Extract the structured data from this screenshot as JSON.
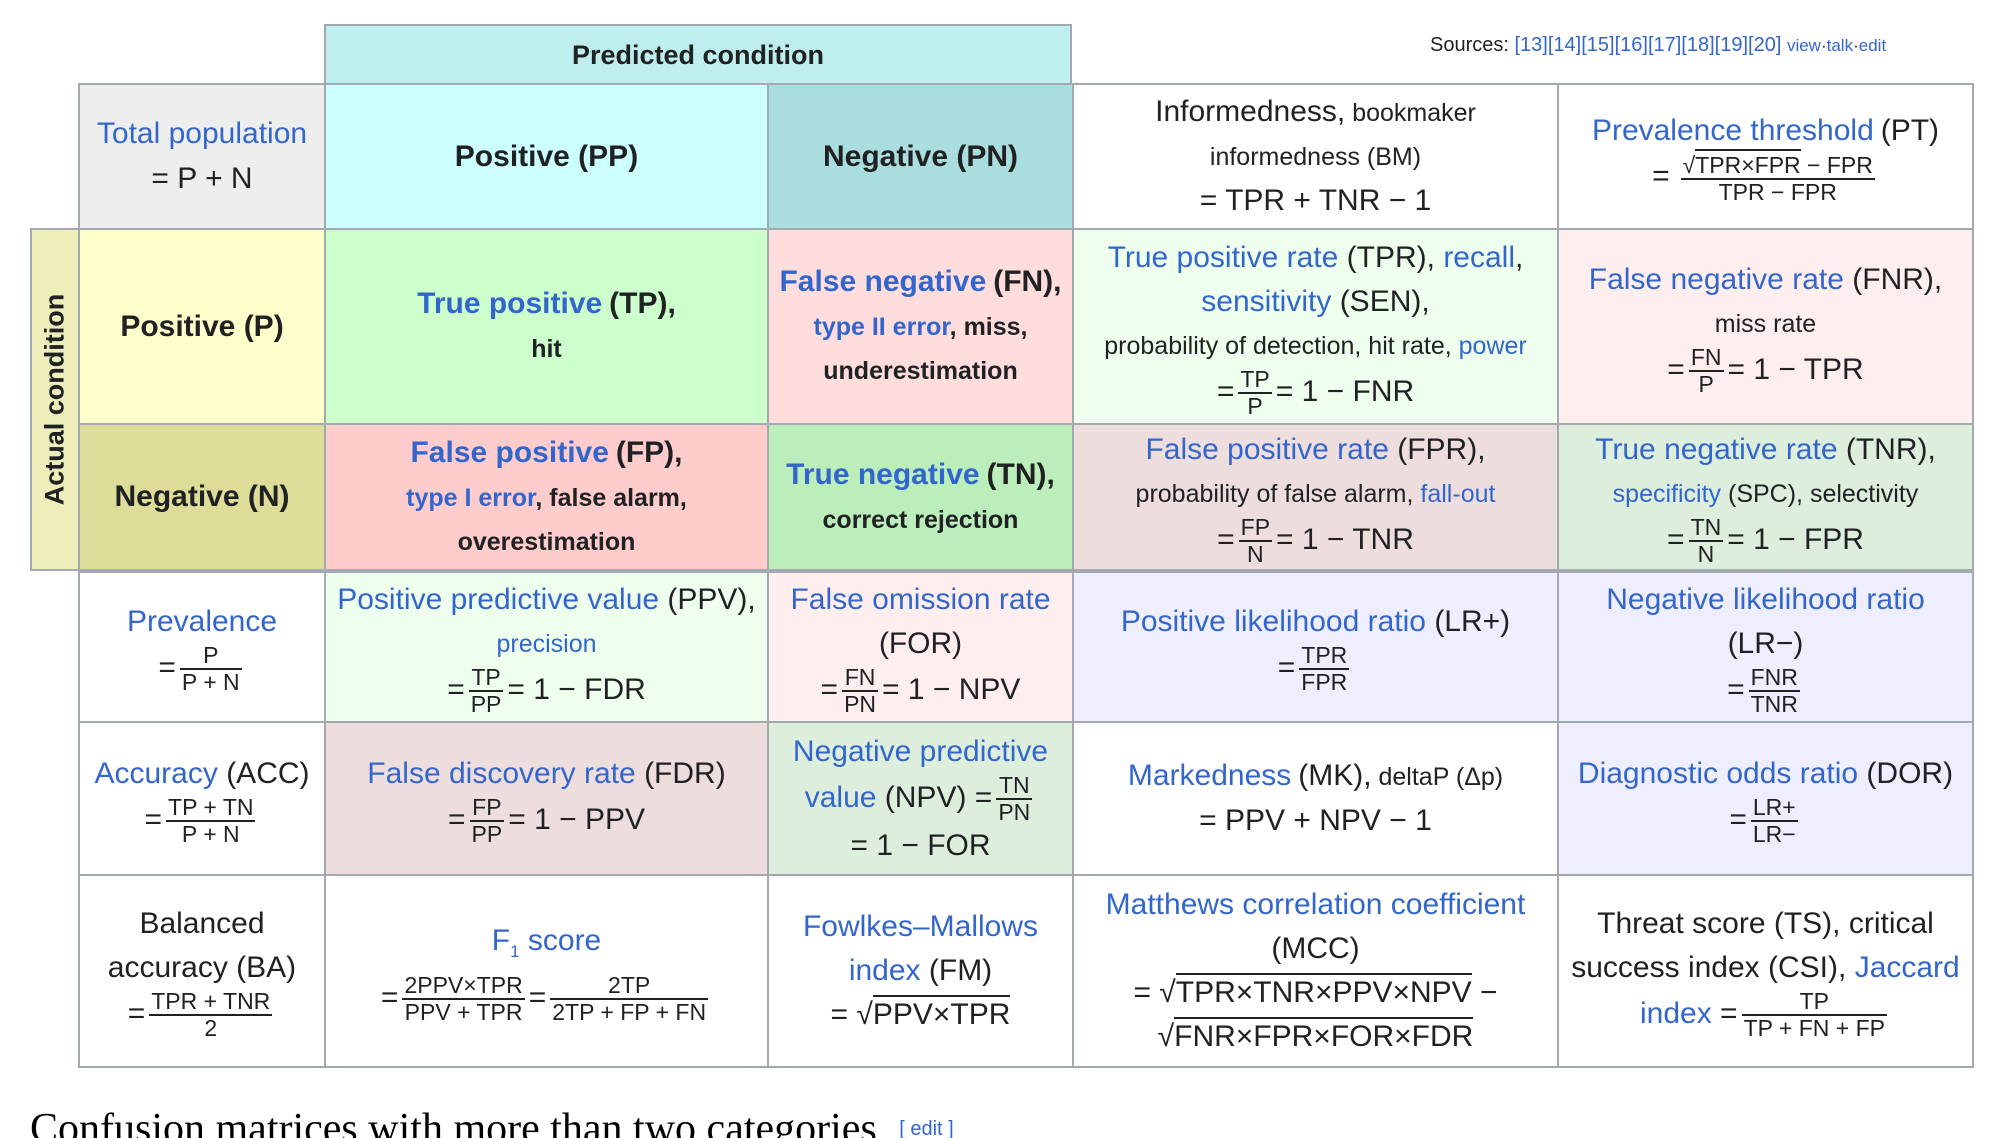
{
  "sources": {
    "label": "Sources:",
    "refs": "[13][14][15][16][17][18][19][20]",
    "view": "view",
    "talk": "talk",
    "edit": "edit",
    "sep": "·"
  },
  "header": {
    "predicted_condition": "Predicted condition",
    "actual_condition": "Actual condition"
  },
  "cells": {
    "total_population": {
      "label": "Total population",
      "formula": "= P + N"
    },
    "positive_pp": "Positive (PP)",
    "negative_pn": "Negative (PN)",
    "informedness": {
      "label": "Informedness,",
      "extra": "bookmaker informedness (BM)",
      "formula": "= TPR + TNR − 1"
    },
    "prevalence_threshold": {
      "label": "Prevalence threshold",
      "abbr": "(PT)",
      "num_sqrt": "TPR×FPR",
      "num_rest": " − FPR",
      "den": "TPR − FPR",
      "eq": "="
    },
    "positive_p": "Positive (P)",
    "negative_n": "Negative (N)",
    "true_positive": {
      "label": "True positive",
      "abbr": "(TP),",
      "extra": "hit"
    },
    "false_negative": {
      "label": "False negative",
      "abbr": "(FN),",
      "link2": "type II error",
      "extra": ", miss,",
      "extra2": "underestimation"
    },
    "tpr": {
      "label": "True positive rate",
      "abbr": "(TPR),",
      "recall": "recall",
      "comma": ",",
      "sensitivity": "sensitivity",
      "sen": "(SEN),",
      "extra": "probability of detection, hit rate,",
      "power": "power",
      "num": "TP",
      "den": "P",
      "rest": "= 1 − FNR",
      "eq": "="
    },
    "fnr": {
      "label": "False negative rate",
      "abbr": "(FNR),",
      "extra": "miss rate",
      "num": "FN",
      "den": "P",
      "rest": "= 1 − TPR",
      "eq": "="
    },
    "false_positive": {
      "label": "False positive",
      "abbr": "(FP),",
      "link2": "type I error",
      "extra": ", false alarm,",
      "extra2": "overestimation"
    },
    "true_negative": {
      "label": "True negative",
      "abbr": "(TN),",
      "extra": "correct rejection"
    },
    "fpr": {
      "label": "False positive rate",
      "abbr": "(FPR),",
      "extra": "probability of false alarm,",
      "fallout": "fall-out",
      "num": "FP",
      "den": "N",
      "rest": "= 1 − TNR",
      "eq": "="
    },
    "tnr": {
      "label": "True negative rate",
      "abbr": "(TNR),",
      "specificity": "specificity",
      "extra": "(SPC), selectivity",
      "num": "TN",
      "den": "N",
      "rest": "= 1 − FPR",
      "eq": "="
    },
    "prevalence": {
      "label": "Prevalence",
      "num": "P",
      "den": "P + N",
      "eq": "="
    },
    "ppv": {
      "label": "Positive predictive value",
      "abbr": "(PPV),",
      "precision": "precision",
      "num": "TP",
      "den": "PP",
      "rest": "= 1 − FDR",
      "eq": "="
    },
    "for": {
      "label": "False omission rate",
      "abbr": "(FOR)",
      "num": "FN",
      "den": "PN",
      "rest": "= 1 − NPV",
      "eq": "="
    },
    "lr_pos": {
      "label": "Positive likelihood ratio",
      "abbr": "(LR+)",
      "num": "TPR",
      "den": "FPR",
      "eq": "="
    },
    "lr_neg": {
      "label": "Negative likelihood ratio",
      "abbr": "(LR−)",
      "num": "FNR",
      "den": "TNR",
      "eq": "="
    },
    "accuracy": {
      "label": "Accuracy",
      "abbr": "(ACC)",
      "num": "TP + TN",
      "den": "P + N",
      "eq": "="
    },
    "fdr": {
      "label": "False discovery rate",
      "abbr": "(FDR)",
      "num": "FP",
      "den": "PP",
      "rest": "= 1 − PPV",
      "eq": "="
    },
    "npv": {
      "label1": "Negative predictive",
      "label2": "value",
      "abbr": "(NPV) =",
      "num": "TN",
      "den": "PN",
      "rest": "= 1 − FOR"
    },
    "markedness": {
      "label": "Markedness",
      "abbr": "(MK),",
      "extra": "deltaP (Δp)",
      "formula": "= PPV + NPV − 1"
    },
    "dor": {
      "label": "Diagnostic odds ratio",
      "abbr": "(DOR)",
      "num": "LR+",
      "den": "LR−",
      "eq": "="
    },
    "balanced_accuracy": {
      "line1": "Balanced",
      "line2": "accuracy (BA)",
      "num": "TPR + TNR",
      "den": "2",
      "eq": "="
    },
    "f1": {
      "label": "F",
      "sub": "1",
      "label2": " score",
      "num1": "2PPV×TPR",
      "den1": "PPV + TPR",
      "num2": "2TP",
      "den2": "2TP + FP + FN",
      "eq": "="
    },
    "fm": {
      "label1": "Fowlkes–Mallows",
      "label2": "index",
      "abbr": "(FM)",
      "eq": "= √",
      "sqrt": "PPV×TPR"
    },
    "mcc": {
      "label": "Matthews correlation coefficient",
      "abbr": "(MCC)",
      "line1_eq": "= √",
      "line1_sqrt": "TPR×TNR×PPV×NPV",
      "line1_rest": " −",
      "line2_eq": "√",
      "line2_sqrt": "FNR×FPR×FOR×FDR"
    },
    "threat_score": {
      "line1": "Threat score (TS), critical",
      "line2": "success index (CSI),",
      "jaccard": "Jaccard",
      "index": "index",
      "eq": "=",
      "num": "TP",
      "den": "TP + FN + FP"
    }
  },
  "section": {
    "title": "Confusion matrices with more than two categories",
    "edit": "[ edit ]"
  },
  "colors": {
    "link": "#3366cc",
    "border": "#a2a9b1"
  }
}
